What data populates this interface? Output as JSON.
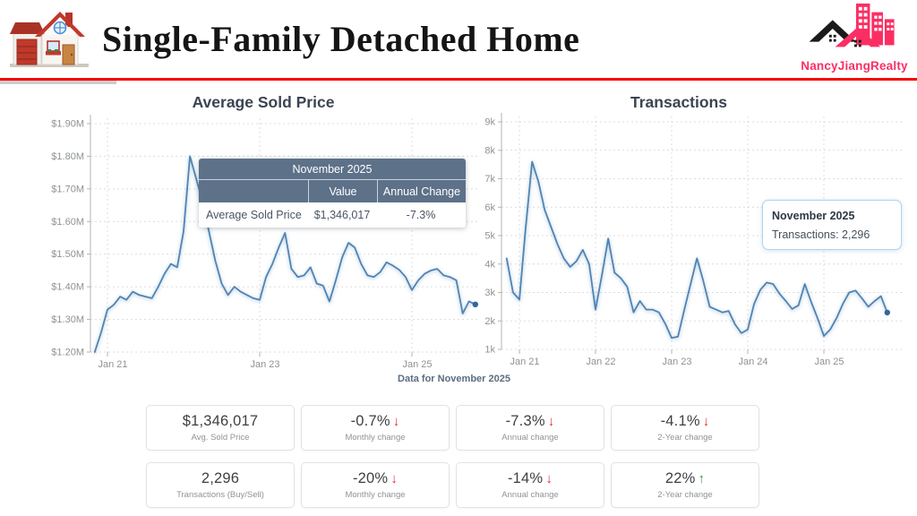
{
  "header": {
    "title": "Single-Family Detached Home",
    "logo_text": "NancyJiangRealty"
  },
  "icons": {
    "arrow_down": "↓",
    "arrow_up": "↑"
  },
  "colors": {
    "accent_red": "#f60603",
    "logo_pink": "#fb2e63",
    "line_blue": "#5084b2",
    "tooltip_header_bg": "#5d7189",
    "negative": "#e03131",
    "positive": "#2f9e44"
  },
  "footnote": "Data for November 2025",
  "chart_data": [
    {
      "type": "line",
      "title": "Average Sold Price",
      "x_range": {
        "start": "Nov 2020",
        "end": "Nov 2025",
        "interval": "monthly"
      },
      "x_ticks": [
        {
          "label": "Jan 21",
          "month_index": 2
        },
        {
          "label": "Jan 23",
          "month_index": 26
        },
        {
          "label": "Jan 25",
          "month_index": 50
        }
      ],
      "y_tick_labels": [
        "$1.20M",
        "$1.30M",
        "$1.40M",
        "$1.50M",
        "$1.60M",
        "$1.70M",
        "$1.80M",
        "$1.90M"
      ],
      "ylim": [
        1.2,
        1.9
      ],
      "y_unit": "million $",
      "grid": true,
      "line_color": "#5084b2",
      "point_color": "#35649b",
      "series": [
        {
          "name": "Average Sold Price",
          "values": [
            1.2,
            1.26,
            1.33,
            1.345,
            1.37,
            1.36,
            1.385,
            1.375,
            1.37,
            1.365,
            1.4,
            1.44,
            1.47,
            1.46,
            1.57,
            1.8,
            1.73,
            1.66,
            1.57,
            1.48,
            1.41,
            1.375,
            1.4,
            1.385,
            1.375,
            1.365,
            1.36,
            1.43,
            1.47,
            1.52,
            1.565,
            1.455,
            1.43,
            1.435,
            1.46,
            1.41,
            1.4035,
            1.355,
            1.42,
            1.49,
            1.535,
            1.52,
            1.47,
            1.435,
            1.43,
            1.445,
            1.475,
            1.465,
            1.452,
            1.43,
            1.39,
            1.42,
            1.44,
            1.45,
            1.455,
            1.435,
            1.43,
            1.42,
            1.318,
            1.3555,
            1.346
          ]
        }
      ],
      "tooltip": {
        "header": "November 2025",
        "col_value": "Value",
        "col_change": "Annual Change",
        "row_label": "Average Sold Price",
        "value": "$1,346,017",
        "annual_change": "-7.3%"
      }
    },
    {
      "type": "line",
      "title": "Transactions",
      "x_range": {
        "start": "Nov 2020",
        "end": "Nov 2025",
        "interval": "monthly"
      },
      "x_ticks": [
        {
          "label": "Jan 21",
          "month_index": 2
        },
        {
          "label": "Jan 22",
          "month_index": 14
        },
        {
          "label": "Jan 23",
          "month_index": 26
        },
        {
          "label": "Jan 24",
          "month_index": 38
        },
        {
          "label": "Jan 25",
          "month_index": 50
        }
      ],
      "y_tick_labels": [
        "1k",
        "2k",
        "3k",
        "4k",
        "5k",
        "6k",
        "7k",
        "8k",
        "9k"
      ],
      "ylim": [
        1,
        9
      ],
      "y_unit": "thousand transactions",
      "grid": true,
      "line_color": "#5084b2",
      "point_color": "#35649b",
      "series": [
        {
          "name": "Transactions",
          "values": [
            4.2,
            3.0,
            2.75,
            5.3,
            7.6,
            6.9,
            5.9,
            5.3,
            4.7,
            4.2,
            3.9,
            4.1,
            4.5,
            4.0,
            2.4,
            3.6,
            4.9,
            3.7,
            3.5,
            3.2,
            2.3,
            2.7,
            2.4,
            2.4,
            2.3,
            1.9,
            1.4,
            1.45,
            2.4,
            3.3,
            4.2,
            3.4,
            2.5,
            2.4,
            2.3,
            2.35,
            1.88,
            1.57,
            1.7,
            2.6,
            3.1,
            3.35,
            3.3,
            2.96,
            2.7,
            2.42,
            2.55,
            3.3,
            2.67,
            2.1,
            1.47,
            1.7,
            2.1,
            2.6,
            3.0,
            3.07,
            2.8,
            2.5,
            2.7,
            2.87,
            2.296
          ]
        }
      ],
      "tooltip": {
        "title": "November 2025",
        "body": "Transactions: 2,296"
      }
    }
  ],
  "cards": [
    {
      "value": "$1,346,017",
      "direction": null,
      "label": "Avg. Sold Price"
    },
    {
      "value": "-0.7%",
      "direction": "down",
      "label": "Monthly change"
    },
    {
      "value": "-7.3%",
      "direction": "down",
      "label": "Annual change"
    },
    {
      "value": "-4.1%",
      "direction": "down",
      "label": "2-Year change"
    },
    {
      "value": "2,296",
      "direction": null,
      "label": "Transactions (Buy/Sell)"
    },
    {
      "value": "-20%",
      "direction": "down",
      "label": "Monthly change"
    },
    {
      "value": "-14%",
      "direction": "down",
      "label": "Annual change"
    },
    {
      "value": "22%",
      "direction": "up",
      "label": "2-Year change"
    }
  ]
}
